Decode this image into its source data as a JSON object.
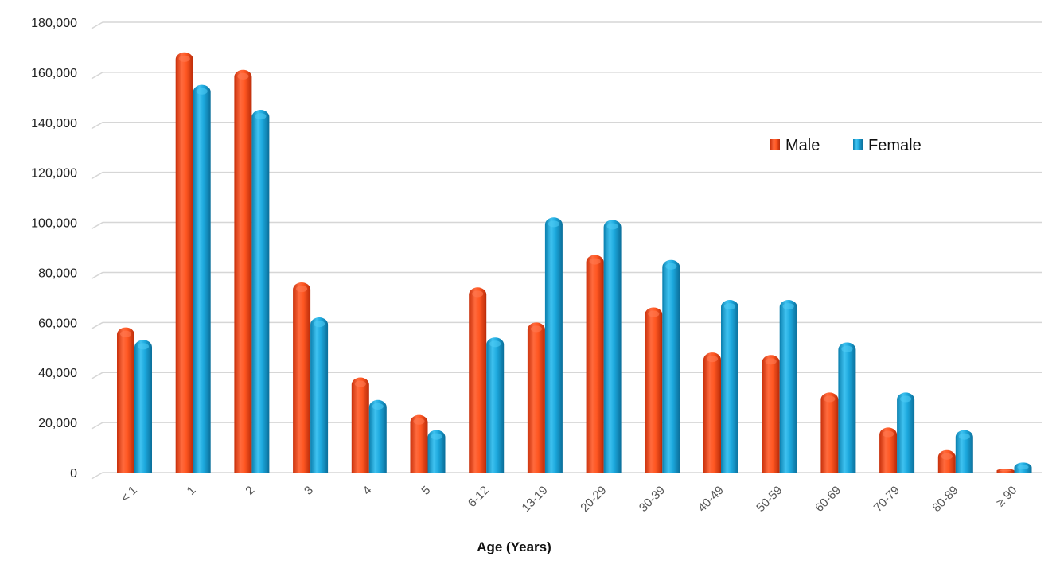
{
  "chart_data": {
    "type": "bar",
    "title": "",
    "xlabel": "Age (Years)",
    "ylabel": "",
    "ylim": [
      0,
      180000
    ],
    "y_ticks": [
      "0",
      "20,000",
      "40,000",
      "60,000",
      "80,000",
      "100,000",
      "120,000",
      "140,000",
      "160,000",
      "180,000"
    ],
    "grid": true,
    "legend_position": "top-right",
    "categories": [
      "< 1",
      "1",
      "2",
      "3",
      "4",
      "5",
      "6-12",
      "13-19",
      "20-29",
      "30-39",
      "40-49",
      "50-59",
      "60-69",
      "70-79",
      "80-89",
      "≥ 90"
    ],
    "series": [
      {
        "name": "Male",
        "color": "#FF5722",
        "values": [
          58000,
          168000,
          161000,
          76000,
          38000,
          23000,
          74000,
          60000,
          87000,
          66000,
          48000,
          47000,
          32000,
          18000,
          9000,
          1500
        ]
      },
      {
        "name": "Female",
        "color": "#1CA8DD",
        "values": [
          53000,
          155000,
          145000,
          62000,
          29000,
          17000,
          54000,
          102000,
          101000,
          85000,
          69000,
          69000,
          52000,
          32000,
          17000,
          4000
        ]
      }
    ]
  }
}
